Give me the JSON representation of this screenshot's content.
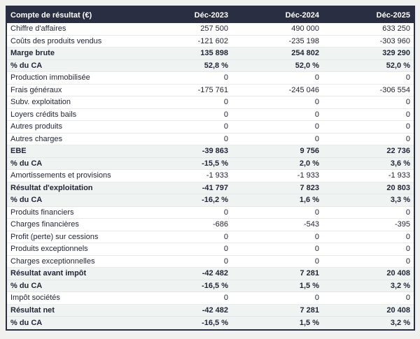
{
  "page": {
    "background": "#f0f0ee"
  },
  "colors": {
    "header_bg": "#2a2e43",
    "header_text": "#ffffff",
    "body_text": "#232636",
    "emphasis_row_bg": "#eff3f2",
    "table_border": "#2a2e43",
    "row_divider": "#ebebeb"
  },
  "chart_data": {
    "type": "table",
    "title": "Compte de résultat (€)",
    "columns": [
      "Déc-2023",
      "Déc-2024",
      "Déc-2025"
    ],
    "rows": [
      {
        "label": "Chiffre d'affaires",
        "values": [
          "257 500",
          "490 000",
          "633 250"
        ],
        "emphasis": false
      },
      {
        "label": "Coûts des produits vendus",
        "values": [
          "-121 602",
          "-235 198",
          "-303 960"
        ],
        "emphasis": false
      },
      {
        "label": "Marge brute",
        "values": [
          "135 898",
          "254 802",
          "329 290"
        ],
        "emphasis": true
      },
      {
        "label": "% du CA",
        "values": [
          "52,8 %",
          "52,0 %",
          "52,0 %"
        ],
        "emphasis": true
      },
      {
        "label": "Production immobilisée",
        "values": [
          "0",
          "0",
          "0"
        ],
        "emphasis": false
      },
      {
        "label": "Frais généraux",
        "values": [
          "-175 761",
          "-245 046",
          "-306 554"
        ],
        "emphasis": false
      },
      {
        "label": "Subv. exploitation",
        "values": [
          "0",
          "0",
          "0"
        ],
        "emphasis": false
      },
      {
        "label": "Loyers crédits bails",
        "values": [
          "0",
          "0",
          "0"
        ],
        "emphasis": false
      },
      {
        "label": "Autres produits",
        "values": [
          "0",
          "0",
          "0"
        ],
        "emphasis": false
      },
      {
        "label": "Autres charges",
        "values": [
          "0",
          "0",
          "0"
        ],
        "emphasis": false
      },
      {
        "label": "EBE",
        "values": [
          "-39 863",
          "9 756",
          "22 736"
        ],
        "emphasis": true
      },
      {
        "label": "% du CA",
        "values": [
          "-15,5 %",
          "2,0 %",
          "3,6 %"
        ],
        "emphasis": true
      },
      {
        "label": "Amortissements et provisions",
        "values": [
          "-1 933",
          "-1 933",
          "-1 933"
        ],
        "emphasis": false
      },
      {
        "label": "Résultat d'exploitation",
        "values": [
          "-41 797",
          "7 823",
          "20 803"
        ],
        "emphasis": true
      },
      {
        "label": "% du CA",
        "values": [
          "-16,2 %",
          "1,6 %",
          "3,3 %"
        ],
        "emphasis": true
      },
      {
        "label": "Produits financiers",
        "values": [
          "0",
          "0",
          "0"
        ],
        "emphasis": false
      },
      {
        "label": "Charges financières",
        "values": [
          "-686",
          "-543",
          "-395"
        ],
        "emphasis": false
      },
      {
        "label": "Profit (perte) sur cessions",
        "values": [
          "0",
          "0",
          "0"
        ],
        "emphasis": false
      },
      {
        "label": "Produits exceptionnels",
        "values": [
          "0",
          "0",
          "0"
        ],
        "emphasis": false
      },
      {
        "label": "Charges exceptionnelles",
        "values": [
          "0",
          "0",
          "0"
        ],
        "emphasis": false
      },
      {
        "label": "Résultat avant impôt",
        "values": [
          "-42 482",
          "7 281",
          "20 408"
        ],
        "emphasis": true
      },
      {
        "label": "% du CA",
        "values": [
          "-16,5 %",
          "1,5 %",
          "3,2 %"
        ],
        "emphasis": true
      },
      {
        "label": "Impôt sociétés",
        "values": [
          "0",
          "0",
          "0"
        ],
        "emphasis": false
      },
      {
        "label": "Résultat net",
        "values": [
          "-42 482",
          "7 281",
          "20 408"
        ],
        "emphasis": true
      },
      {
        "label": "% du CA",
        "values": [
          "-16,5 %",
          "1,5 %",
          "3,2 %"
        ],
        "emphasis": true
      }
    ]
  }
}
